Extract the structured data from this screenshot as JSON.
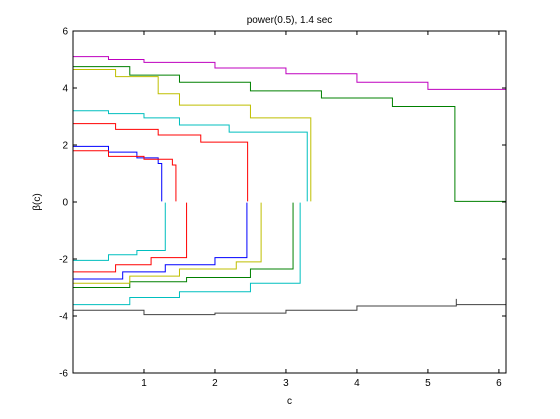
{
  "chart_data": {
    "type": "line",
    "title": "power(0.5), 1.4 sec",
    "xlabel": "c",
    "ylabel": "β(c)",
    "xlim": [
      0,
      6.1
    ],
    "ylim": [
      -6,
      6
    ],
    "xticks": [
      1,
      2,
      3,
      4,
      5,
      6
    ],
    "yticks": [
      -6,
      -4,
      -2,
      0,
      2,
      4,
      6
    ],
    "grid": false,
    "legend": "none",
    "colors": [
      "#0000ff",
      "#008000",
      "#ff0000",
      "#00bfbf",
      "#bf00bf",
      "#bfbf00",
      "#404040"
    ],
    "series": [
      {
        "color": "#bf00bf",
        "x": [
          0,
          0.5,
          1,
          2,
          3,
          4,
          5,
          6.1
        ],
        "y": [
          5.1,
          5.0,
          4.9,
          4.7,
          4.5,
          4.2,
          3.95,
          3.55
        ]
      },
      {
        "color": "#008000",
        "x": [
          0,
          0.8,
          1.5,
          2.5,
          3.5,
          4.5,
          5.38,
          5.38,
          6.1
        ],
        "y": [
          4.75,
          4.45,
          4.2,
          3.9,
          3.65,
          3.35,
          3.05,
          0.02,
          0.02
        ]
      },
      {
        "color": "#bfbf00",
        "x": [
          0,
          0.6,
          1.2,
          1.5,
          2.5,
          3.35,
          3.35
        ],
        "y": [
          4.65,
          4.4,
          3.8,
          3.4,
          2.95,
          2.25,
          0.02
        ]
      },
      {
        "color": "#00bfbf",
        "x": [
          0,
          0.5,
          1.0,
          1.5,
          2.2,
          3.3,
          3.3
        ],
        "y": [
          3.2,
          3.1,
          2.95,
          2.7,
          2.45,
          2.2,
          0.02
        ]
      },
      {
        "color": "#ff0000",
        "x": [
          0,
          0.6,
          1.2,
          1.8,
          2.46,
          2.46
        ],
        "y": [
          2.75,
          2.55,
          2.35,
          2.1,
          1.75,
          0.02
        ]
      },
      {
        "color": "#0000ff",
        "x": [
          0,
          0.5,
          0.9,
          1.2,
          1.25
        ],
        "y": [
          1.95,
          1.75,
          1.55,
          1.35,
          0.02
        ]
      },
      {
        "color": "#ff0000",
        "x": [
          0,
          0.5,
          1.0,
          1.4,
          1.45
        ],
        "y": [
          1.8,
          1.6,
          1.5,
          1.3,
          0.02
        ]
      },
      {
        "color": "#404040",
        "x": [
          0,
          1,
          2,
          3,
          4,
          5.4,
          5.4,
          6.1
        ],
        "y": [
          -3.8,
          -3.95,
          -3.9,
          -3.8,
          -3.65,
          -3.4,
          -3.6,
          -3.35
        ]
      },
      {
        "color": "#00bfbf",
        "x": [
          0,
          0.8,
          1.5,
          2.5,
          3.2,
          3.2
        ],
        "y": [
          -3.6,
          -3.35,
          -3.15,
          -2.85,
          -2.65,
          -0.02
        ]
      },
      {
        "color": "#008000",
        "x": [
          0,
          0.8,
          1.6,
          2.5,
          3.1,
          3.1
        ],
        "y": [
          -3.0,
          -2.8,
          -2.65,
          -2.35,
          -2.2,
          -0.02
        ]
      },
      {
        "color": "#bfbf00",
        "x": [
          0,
          0.8,
          1.5,
          2.3,
          2.65,
          2.65
        ],
        "y": [
          -2.85,
          -2.6,
          -2.35,
          -2.1,
          -1.95,
          -0.02
        ]
      },
      {
        "color": "#0000ff",
        "x": [
          0,
          0.7,
          1.3,
          2.0,
          2.45,
          2.45
        ],
        "y": [
          -2.7,
          -2.45,
          -2.2,
          -1.95,
          -1.75,
          -0.02
        ]
      },
      {
        "color": "#ff0000",
        "x": [
          0,
          0.6,
          1.1,
          1.6,
          1.6
        ],
        "y": [
          -2.45,
          -2.2,
          -1.95,
          -1.65,
          -0.02
        ]
      },
      {
        "color": "#00bfbf",
        "x": [
          0,
          0.5,
          0.9,
          1.3,
          1.3
        ],
        "y": [
          -2.05,
          -1.85,
          -1.7,
          -1.5,
          -0.02
        ]
      }
    ]
  }
}
